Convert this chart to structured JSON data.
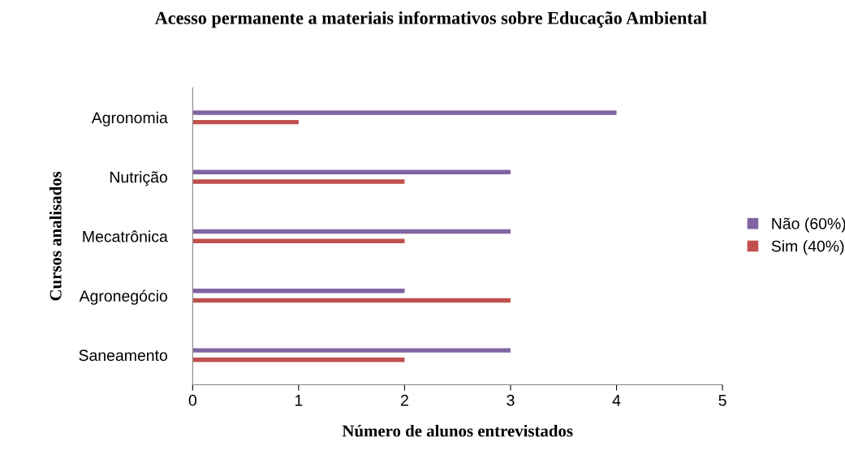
{
  "chart_data": {
    "type": "bar",
    "orientation": "horizontal",
    "title": "Acesso permanente a materiais informativos sobre Educação Ambiental",
    "xlabel": "Número de alunos entrevistados",
    "ylabel": "Cursos analisados",
    "categories": [
      "Agronomia",
      "Nutrição",
      "Mecatrônica",
      "Agronegócio",
      "Saneamento"
    ],
    "series": [
      {
        "name": "Não (60%)",
        "color": "#8064a2",
        "values": [
          4,
          3,
          3,
          2,
          3
        ]
      },
      {
        "name": "Sim (40%)",
        "color": "#c0504d",
        "values": [
          1,
          2,
          2,
          3,
          2
        ]
      }
    ],
    "xlim": [
      0,
      5
    ],
    "xticks": [
      0,
      1,
      2,
      3,
      4,
      5
    ],
    "grid": false,
    "legend": "right"
  }
}
